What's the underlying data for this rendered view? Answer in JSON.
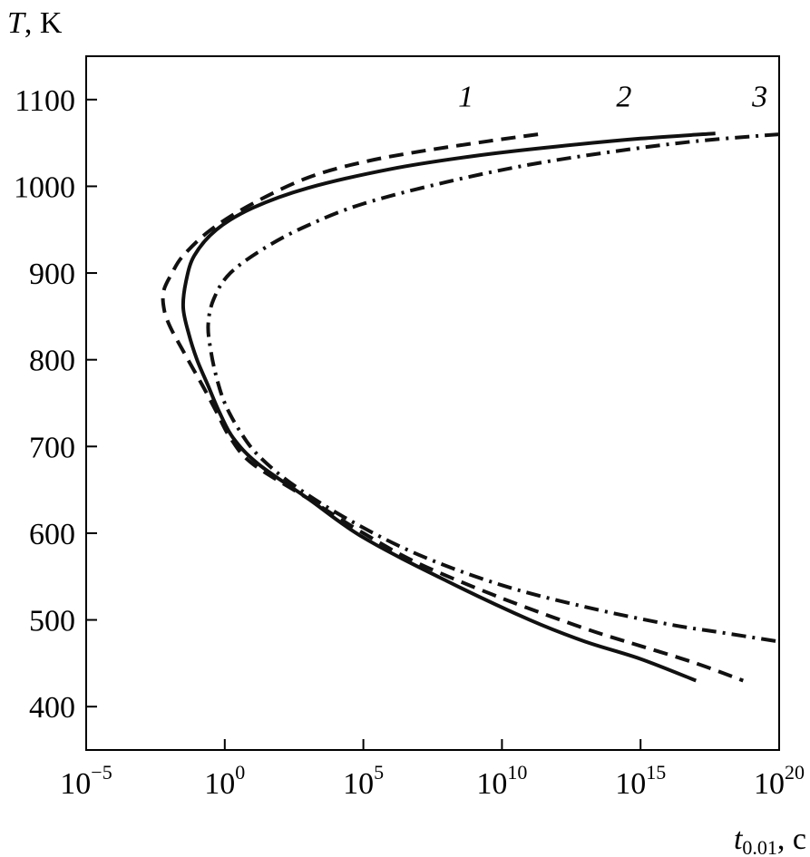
{
  "chart_data": {
    "type": "line",
    "title": "",
    "ylabel": {
      "var": "T",
      "rest": ", K"
    },
    "xlabel": {
      "var": "t",
      "sub": "0.01",
      "rest": ", c"
    },
    "xscale": "log",
    "xlim": [
      -5,
      20
    ],
    "ylim": [
      350,
      1150
    ],
    "grid": false,
    "y_ticks": [
      400,
      500,
      600,
      700,
      800,
      900,
      1000,
      1100
    ],
    "x_ticks": [
      {
        "base": "10",
        "exp": "−5",
        "value": -5
      },
      {
        "base": "10",
        "exp": "0",
        "value": 0
      },
      {
        "base": "10",
        "exp": "5",
        "value": 5
      },
      {
        "base": "10",
        "exp": "10",
        "value": 10
      },
      {
        "base": "10",
        "exp": "15",
        "value": 15
      },
      {
        "base": "10",
        "exp": "20",
        "value": 20
      }
    ],
    "series_labels_note": "x values are log10(t)",
    "series": [
      {
        "label": "1",
        "style": "dashed",
        "points": [
          [
            11.3,
            1060
          ],
          [
            9.5,
            1052
          ],
          [
            7,
            1040
          ],
          [
            5,
            1028
          ],
          [
            3,
            1010
          ],
          [
            1,
            980
          ],
          [
            -0.5,
            950
          ],
          [
            -1.5,
            920
          ],
          [
            -1.9,
            900
          ],
          [
            -2.2,
            880
          ],
          [
            -2.2,
            860
          ],
          [
            -2.0,
            840
          ],
          [
            -1.5,
            810
          ],
          [
            -0.8,
            770
          ],
          [
            -0.3,
            740
          ],
          [
            0.2,
            710
          ],
          [
            1,
            680
          ],
          [
            3,
            640
          ],
          [
            5,
            600
          ],
          [
            7,
            565
          ],
          [
            10,
            525
          ],
          [
            13,
            490
          ],
          [
            15,
            470
          ],
          [
            17,
            450
          ],
          [
            18.7,
            430
          ]
        ]
      },
      {
        "label": "2",
        "style": "solid",
        "points": [
          [
            17.7,
            1061
          ],
          [
            15,
            1055
          ],
          [
            12,
            1046
          ],
          [
            9,
            1035
          ],
          [
            6,
            1020
          ],
          [
            3,
            998
          ],
          [
            1,
            975
          ],
          [
            -0.3,
            950
          ],
          [
            -1.1,
            920
          ],
          [
            -1.4,
            890
          ],
          [
            -1.5,
            860
          ],
          [
            -1.3,
            830
          ],
          [
            -1.0,
            800
          ],
          [
            -0.6,
            770
          ],
          [
            -0.2,
            740
          ],
          [
            0.3,
            710
          ],
          [
            1.2,
            680
          ],
          [
            3,
            640
          ],
          [
            5,
            595
          ],
          [
            8,
            545
          ],
          [
            11,
            500
          ],
          [
            13,
            475
          ],
          [
            15,
            455
          ],
          [
            17,
            430
          ]
        ]
      },
      {
        "label": "3",
        "style": "dashdot",
        "points": [
          [
            20,
            1060
          ],
          [
            17,
            1052
          ],
          [
            14,
            1040
          ],
          [
            11,
            1025
          ],
          [
            8,
            1005
          ],
          [
            5,
            980
          ],
          [
            3,
            955
          ],
          [
            1.5,
            930
          ],
          [
            0.2,
            900
          ],
          [
            -0.4,
            870
          ],
          [
            -0.6,
            840
          ],
          [
            -0.5,
            810
          ],
          [
            -0.3,
            780
          ],
          [
            0,
            750
          ],
          [
            0.5,
            720
          ],
          [
            1.2,
            690
          ],
          [
            2.5,
            655
          ],
          [
            4.5,
            615
          ],
          [
            7,
            575
          ],
          [
            10,
            540
          ],
          [
            13,
            515
          ],
          [
            16,
            495
          ],
          [
            18,
            485
          ],
          [
            20,
            475
          ]
        ]
      }
    ],
    "series_labels": [
      {
        "text": "1",
        "x": 8.7,
        "y": 1092
      },
      {
        "text": "2",
        "x": 14.4,
        "y": 1092
      },
      {
        "text": "3",
        "x": 19.3,
        "y": 1092
      }
    ]
  }
}
